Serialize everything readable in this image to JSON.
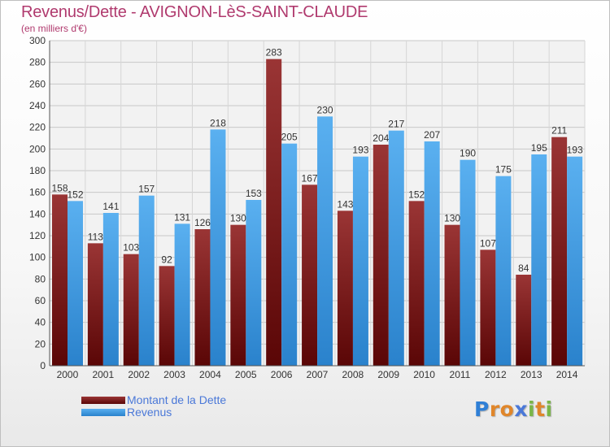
{
  "header": {
    "title": "Revenus/Dette - AVIGNON-LèS-SAINT-CLAUDE",
    "subtitle": "(en milliers d'€)"
  },
  "legend": {
    "items": [
      {
        "label": "Montant de la Dette",
        "color": "#7a1a1a"
      },
      {
        "label": "Revenus",
        "color": "#3a95de"
      }
    ]
  },
  "logo": {
    "letters": [
      "P",
      "r",
      "o",
      "x",
      "i",
      "t",
      "i"
    ],
    "colors": [
      "#2f7fd6",
      "#e0862a",
      "#e0862a",
      "#4a78d8",
      "#7ab648",
      "#e0862a",
      "#7ab648"
    ]
  },
  "chart_data": {
    "type": "bar",
    "title": "Revenus/Dette - AVIGNON-LèS-SAINT-CLAUDE",
    "ylabel": "(en milliers d'€)",
    "ylim": [
      0,
      300
    ],
    "ytick_step": 20,
    "grid": true,
    "legend_position": "bottom",
    "categories": [
      "2000",
      "2001",
      "2002",
      "2003",
      "2004",
      "2005",
      "2006",
      "2007",
      "2008",
      "2009",
      "2010",
      "2011",
      "2012",
      "2013",
      "2014"
    ],
    "series": [
      {
        "name": "Montant de la Dette",
        "color": "#7a1a1a",
        "values": [
          158,
          113,
          103,
          92,
          126,
          130,
          283,
          167,
          143,
          204,
          152,
          130,
          107,
          84,
          211
        ]
      },
      {
        "name": "Revenus",
        "color": "#3a95de",
        "values": [
          152,
          141,
          157,
          131,
          218,
          153,
          205,
          230,
          193,
          217,
          207,
          190,
          175,
          195,
          193
        ]
      }
    ]
  }
}
